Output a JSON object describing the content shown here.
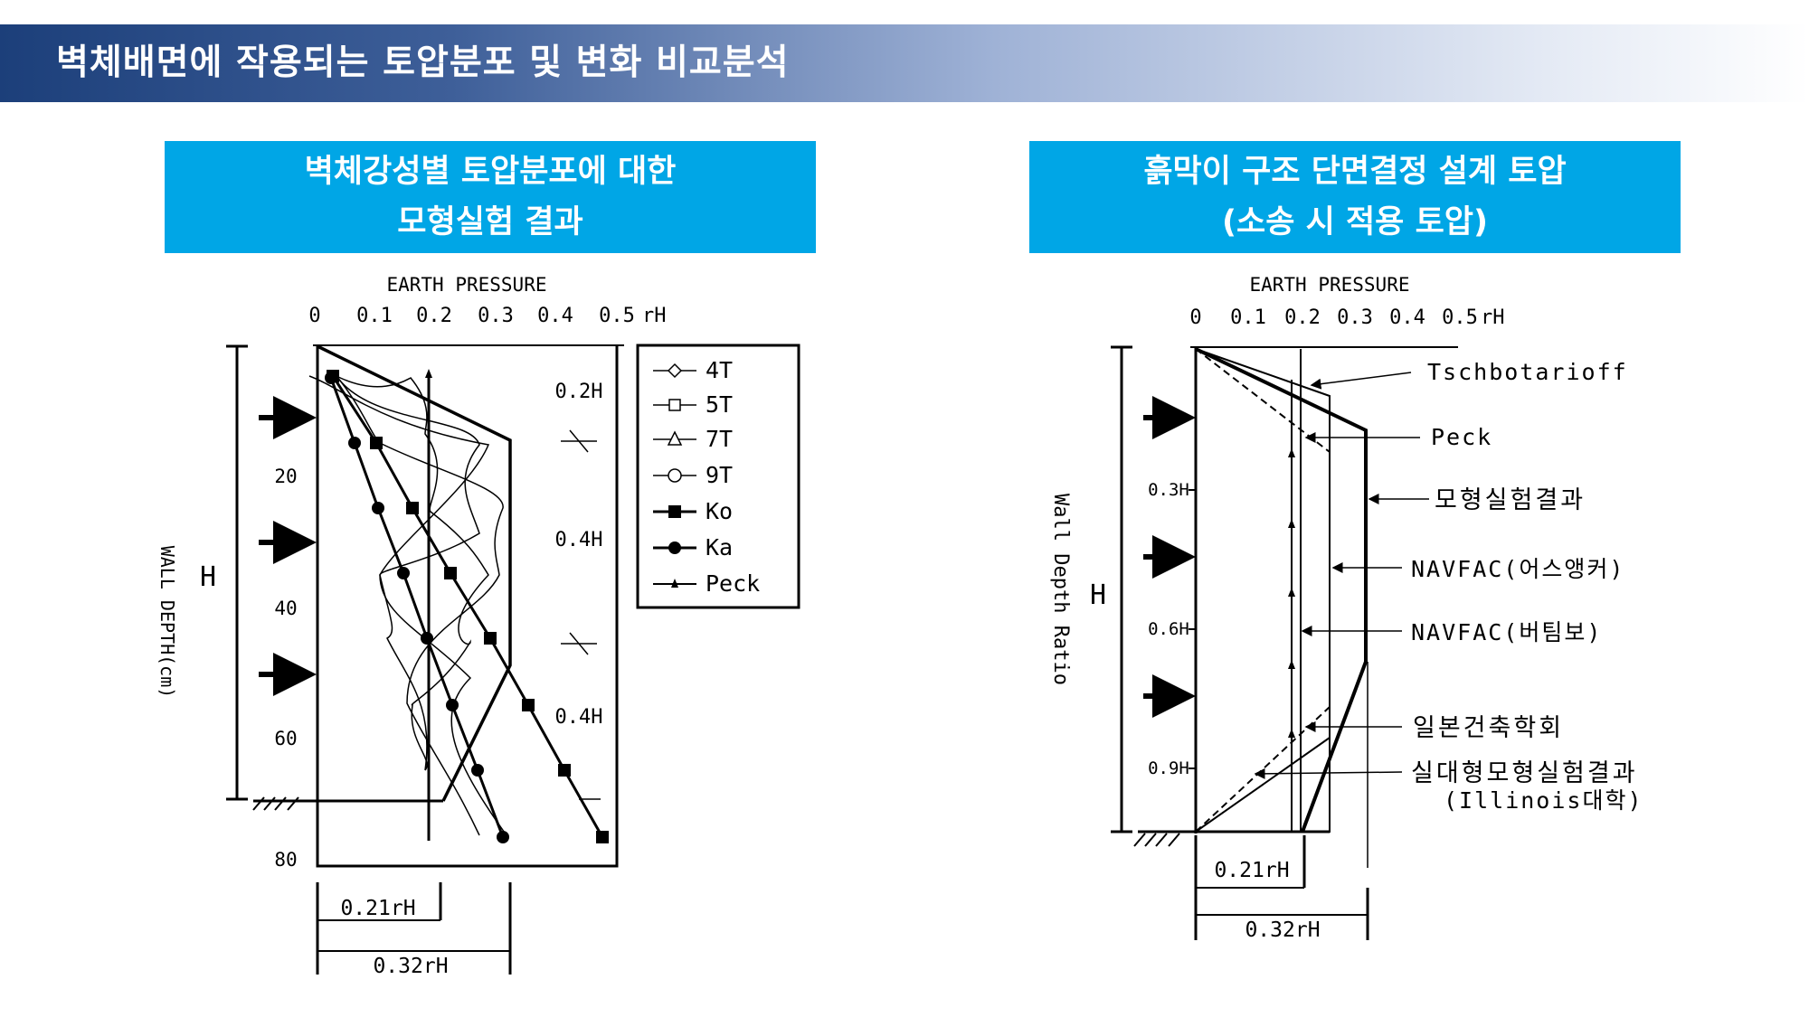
{
  "slide": {
    "title": "벽체배면에 작용되는 토압분포 및 변화 비교분석"
  },
  "left_panel": {
    "header_line1": "벽체강성별 토압분포에 대한",
    "header_line2": "모형실험 결과",
    "axis_title": "EARTH PRESSURE",
    "x_ticks": [
      "0",
      "0.1",
      "0.2",
      "0.3",
      "0.4",
      "0.5"
    ],
    "x_unit": "rH",
    "y_label": "WALL DEPTH(cm)",
    "y_ticks": [
      "20",
      "40",
      "60",
      "80"
    ],
    "h_label": "H",
    "zone_labels": [
      "0.2H",
      "0.4H",
      "0.4H"
    ],
    "legend": [
      "4T",
      "5T",
      "7T",
      "9T",
      "Ko",
      "Ka",
      "Peck"
    ],
    "dim_labels": [
      "0.21rH",
      "0.32rH"
    ]
  },
  "right_panel": {
    "header_line1": "흙막이 구조 단면결정 설계 토압",
    "header_line2": "(소송 시 적용 토압)",
    "axis_title": "EARTH PRESSURE",
    "x_ticks": [
      "0",
      "0.1",
      "0.2",
      "0.3",
      "0.4",
      "0.5"
    ],
    "x_unit": "rH",
    "y_label": "Wall Depth Ratio",
    "y_ticks": [
      "0.3H",
      "0.6H",
      "0.9H"
    ],
    "h_label": "H",
    "callouts": [
      "Tschbotarioff",
      "Peck",
      "모형실험결과",
      "NAVFAC(어스앵커)",
      "NAVFAC(버팀보)",
      "일본건축학회",
      "실대형모형실험결과",
      "(Illinois대학)"
    ],
    "dim_labels": [
      "0.21rH",
      "0.32rH"
    ]
  }
}
